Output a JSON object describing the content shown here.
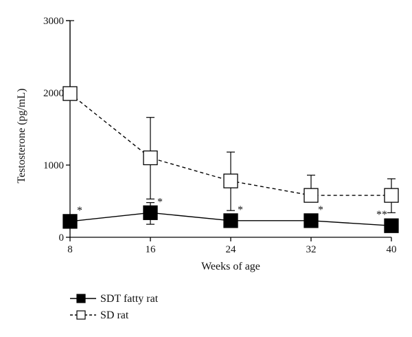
{
  "chart_data": {
    "type": "line",
    "title": "",
    "xlabel": "Weeks of age",
    "ylabel": "Testosterone (pg/mL)",
    "x": [
      8,
      16,
      24,
      32,
      40
    ],
    "xlim": [
      8,
      40
    ],
    "ylim": [
      0,
      3000
    ],
    "yticks": [
      0,
      1000,
      2000,
      3000
    ],
    "grid": false,
    "legend_position": "bottom-left",
    "series": [
      {
        "name": "SDT fatty rat",
        "marker": "filled-square",
        "line_style": "solid",
        "color": "#000000",
        "values": [
          220,
          340,
          230,
          230,
          160
        ],
        "error_upper": [
          220,
          480,
          230,
          230,
          160
        ],
        "error_lower": [
          220,
          180,
          230,
          230,
          160
        ],
        "annotations": [
          "*",
          "*",
          "*",
          "*",
          "**"
        ]
      },
      {
        "name": "SD rat",
        "marker": "open-square",
        "line_style": "dashed",
        "color": "#000000",
        "values": [
          1990,
          1100,
          780,
          580,
          580
        ],
        "error_upper": [
          3000,
          1660,
          1180,
          860,
          810
        ],
        "error_lower": [
          1990,
          530,
          370,
          580,
          340
        ]
      }
    ]
  }
}
